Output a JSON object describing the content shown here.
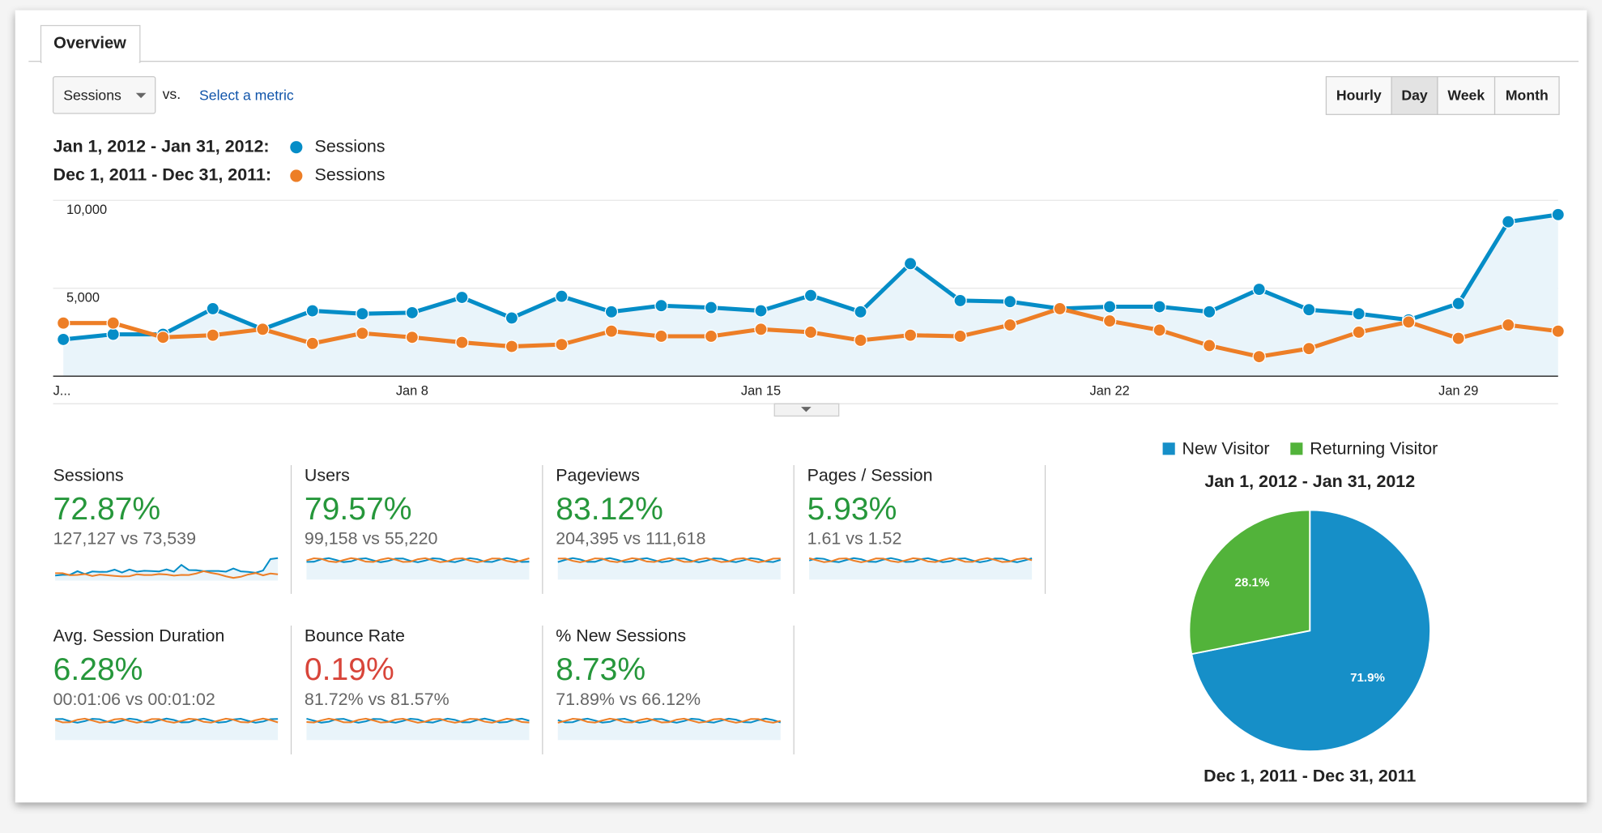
{
  "tabs": [
    "Overview"
  ],
  "metric_selector": {
    "selected": "Sessions",
    "vs_label": "vs.",
    "compare_link": "Select a metric"
  },
  "granularity": [
    "Hourly",
    "Day",
    "Week",
    "Month"
  ],
  "active_granularity": "Day",
  "chart_data": [
    {
      "type": "line",
      "categories": [
        "J...",
        null,
        null,
        null,
        null,
        null,
        null,
        "Jan 8",
        null,
        null,
        null,
        null,
        null,
        null,
        "Jan 15",
        null,
        null,
        null,
        null,
        null,
        null,
        "Jan 22",
        null,
        null,
        null,
        null,
        null,
        null,
        "Jan 29",
        null,
        null
      ],
      "series": [
        {
          "period": "Jan 1, 2012 - Jan 31, 2012:",
          "name": "Sessions",
          "color": "#058dc7",
          "values": [
            2090,
            2380,
            2380,
            3840,
            2670,
            3720,
            3550,
            3610,
            4480,
            3310,
            4540,
            3660,
            4010,
            3900,
            3720,
            4590,
            3660,
            6400,
            4300,
            4240,
            3840,
            3950,
            3950,
            3660,
            4940,
            3780,
            3550,
            3200,
            4130,
            8780,
            9190
          ]
        },
        {
          "period": "Dec 1, 2011 - Dec 31, 2011:",
          "name": "Sessions",
          "color": "#ed7e26",
          "values": [
            3020,
            3020,
            2210,
            2330,
            2670,
            1860,
            2440,
            2210,
            1920,
            1690,
            1800,
            2560,
            2270,
            2270,
            2670,
            2500,
            2040,
            2330,
            2270,
            2910,
            3840,
            3140,
            2620,
            1740,
            1110,
            1570,
            2500,
            3080,
            2150,
            2910,
            2560
          ]
        }
      ],
      "ylim": [
        0,
        10000
      ],
      "yticks": [
        {
          "value": 5000,
          "label": "5,000"
        },
        {
          "value": 10000,
          "label": "10,000"
        }
      ],
      "grid": true,
      "fill_first_series": true
    },
    {
      "type": "pie",
      "title": "Jan 1, 2012 - Jan 31, 2012",
      "subtitle": "Dec 1, 2011 - Dec 31, 2011",
      "categories": [
        "New Visitor",
        "Returning Visitor"
      ],
      "values": [
        71.9,
        28.1
      ],
      "value_labels": [
        "71.9%",
        "28.1%"
      ],
      "colors": [
        "#168fc8",
        "#52b33a"
      ]
    }
  ],
  "scorecards": [
    {
      "title": "Sessions",
      "change": "72.87%",
      "comparison": "127,127 vs 73,539",
      "color": "#26973b"
    },
    {
      "title": "Users",
      "change": "79.57%",
      "comparison": "99,158 vs 55,220",
      "color": "#26973b"
    },
    {
      "title": "Pageviews",
      "change": "83.12%",
      "comparison": "204,395 vs 111,618",
      "color": "#26973b"
    },
    {
      "title": "Pages / Session",
      "change": "5.93%",
      "comparison": "1.61 vs 1.52",
      "color": "#26973b"
    },
    {
      "title": "Avg. Session Duration",
      "change": "6.28%",
      "comparison": "00:01:06 vs 00:01:02",
      "color": "#26973b"
    },
    {
      "title": "Bounce Rate",
      "change": "0.19%",
      "comparison": "81.72% vs 81.57%",
      "color": "#d8453a"
    },
    {
      "title": "% New Sessions",
      "change": "8.73%",
      "comparison": "71.89% vs 66.12%",
      "color": "#26973b"
    }
  ]
}
